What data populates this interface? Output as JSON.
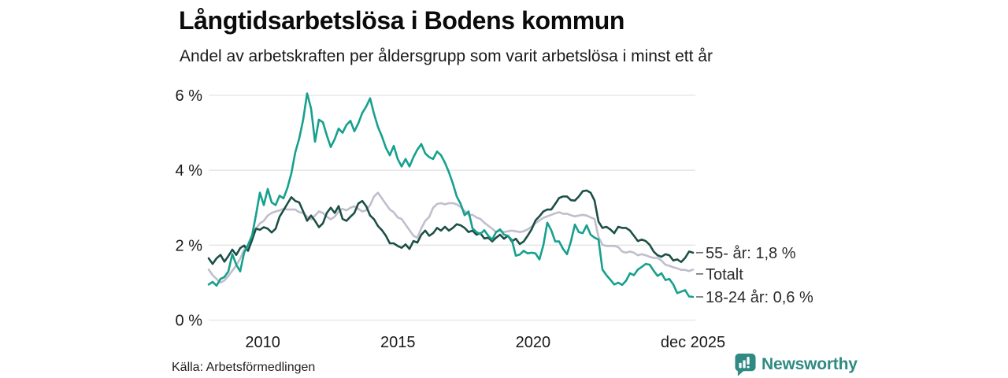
{
  "header": {
    "title": "Långtidsarbetslösa i Bodens kommun",
    "subtitle": "Andel av arbetskraften per åldersgrupp som varit arbetslösa i minst ett år"
  },
  "footer": {
    "source": "Källa: Arbetsförmedlingen",
    "brand": "Newsworthy",
    "brand_icon": "bar-chart-speech-bubble-icon"
  },
  "colors": {
    "brand": "#2e8a82",
    "grid": "#e4e4e4",
    "axis_text": "#1a1a1a",
    "label_text": "#2b2b2b",
    "label_dash": "#6b6b6b"
  },
  "chart_data": {
    "type": "line",
    "title": "Långtidsarbetslösa i Bodens kommun",
    "subtitle": "Andel av arbetskraften per åldersgrupp som varit arbetslösa i minst ett år",
    "unit": "% av arbetskraften",
    "grid": true,
    "x_axis": {
      "start_year": 2008.0,
      "end_year": 2025.92,
      "ticks": [
        {
          "year": 2010,
          "label": "2010"
        },
        {
          "year": 2015,
          "label": "2015"
        },
        {
          "year": 2020,
          "label": "2020"
        },
        {
          "year": 2025.92,
          "label": "dec 2025"
        }
      ]
    },
    "y_axis": {
      "max": 6,
      "ticks": [
        {
          "value": 0,
          "label": "0 %"
        },
        {
          "value": 2,
          "label": "2 %"
        },
        {
          "value": 4,
          "label": "4 %"
        },
        {
          "value": 6,
          "label": "6 %"
        }
      ]
    },
    "series": [
      {
        "name": "Totalt",
        "end_label": "Totalt",
        "color": "#c1becd",
        "values": [
          1.35,
          1.2,
          1.1,
          1.0,
          1.06,
          1.18,
          1.32,
          1.46,
          1.64,
          1.88,
          2.02,
          2.27,
          2.44,
          2.58,
          2.65,
          2.79,
          2.86,
          2.9,
          2.93,
          2.97,
          2.95,
          2.95,
          2.95,
          2.88,
          2.86,
          2.76,
          2.69,
          2.79,
          2.9,
          2.86,
          2.76,
          2.69,
          2.76,
          2.9,
          2.97,
          2.93,
          3.0,
          3.04,
          2.97,
          2.9,
          2.93,
          3.07,
          3.3,
          3.4,
          3.25,
          3.1,
          2.95,
          2.88,
          2.74,
          2.7,
          2.55,
          2.4,
          2.25,
          2.2,
          2.45,
          2.65,
          2.75,
          3.0,
          3.1,
          3.12,
          3.09,
          3.12,
          3.12,
          3.09,
          3.02,
          2.91,
          2.81,
          2.81,
          2.74,
          2.7,
          2.6,
          2.52,
          2.44,
          2.35,
          2.39,
          2.35,
          2.37,
          2.39,
          2.37,
          2.35,
          2.37,
          2.42,
          2.49,
          2.59,
          2.66,
          2.73,
          2.77,
          2.81,
          2.85,
          2.88,
          2.84,
          2.84,
          2.8,
          2.77,
          2.79,
          2.81,
          2.79,
          2.74,
          2.7,
          2.22,
          2.01,
          1.98,
          1.98,
          1.98,
          1.95,
          1.83,
          1.8,
          1.83,
          1.8,
          1.73,
          1.76,
          1.73,
          1.69,
          1.66,
          1.66,
          1.59,
          1.48,
          1.45,
          1.41,
          1.38,
          1.34,
          1.34,
          1.31,
          1.35
        ]
      },
      {
        "name": "55- år",
        "end_label": "55- år: 1,8 %",
        "color": "#1d4f47",
        "values": [
          1.65,
          1.5,
          1.65,
          1.74,
          1.56,
          1.71,
          1.88,
          1.74,
          1.92,
          1.99,
          1.85,
          2.13,
          2.44,
          2.41,
          2.48,
          2.44,
          2.34,
          2.44,
          2.76,
          2.93,
          3.11,
          3.28,
          3.18,
          3.14,
          2.9,
          2.65,
          2.79,
          2.65,
          2.48,
          2.58,
          2.86,
          3.0,
          2.86,
          3.04,
          2.7,
          2.65,
          2.76,
          2.86,
          3.11,
          3.18,
          3.04,
          2.79,
          2.69,
          2.51,
          2.4,
          2.25,
          2.05,
          2.05,
          1.98,
          1.93,
          2.02,
          1.9,
          2.11,
          2.07,
          2.28,
          2.39,
          2.25,
          2.32,
          2.46,
          2.39,
          2.49,
          2.39,
          2.46,
          2.56,
          2.53,
          2.46,
          2.35,
          2.39,
          2.28,
          2.32,
          2.18,
          2.2,
          2.1,
          2.2,
          2.28,
          2.17,
          2.25,
          2.1,
          2.17,
          2.03,
          2.1,
          2.25,
          2.42,
          2.66,
          2.77,
          2.9,
          2.95,
          2.95,
          3.1,
          3.26,
          3.3,
          3.3,
          3.2,
          3.19,
          3.3,
          3.44,
          3.46,
          3.4,
          3.19,
          2.63,
          2.46,
          2.49,
          2.42,
          2.32,
          2.49,
          2.46,
          2.46,
          2.39,
          2.25,
          2.11,
          2.15,
          2.11,
          2.01,
          1.83,
          1.73,
          1.69,
          1.76,
          1.73,
          1.59,
          1.62,
          1.55,
          1.66,
          1.83,
          1.8
        ]
      },
      {
        "name": "18-24 år",
        "end_label": "18-24 år: 0,6 %",
        "color": "#16a08d",
        "values": [
          0.95,
          1.02,
          0.92,
          1.1,
          1.15,
          1.3,
          1.76,
          1.48,
          1.3,
          1.8,
          2.0,
          2.25,
          2.8,
          3.4,
          3.07,
          3.5,
          3.14,
          3.07,
          3.32,
          3.25,
          3.53,
          3.92,
          4.48,
          4.85,
          5.35,
          6.05,
          5.65,
          4.76,
          5.35,
          5.28,
          4.93,
          4.62,
          4.83,
          5.11,
          5.0,
          5.21,
          5.32,
          5.04,
          5.25,
          5.53,
          5.7,
          5.92,
          5.5,
          5.15,
          4.9,
          4.6,
          4.4,
          4.65,
          4.3,
          4.1,
          4.3,
          4.1,
          4.35,
          4.55,
          4.7,
          4.45,
          4.35,
          4.3,
          4.5,
          4.4,
          4.2,
          3.95,
          3.65,
          3.3,
          3.1,
          2.8,
          2.9,
          2.45,
          2.35,
          2.3,
          2.4,
          2.25,
          2.15,
          2.35,
          2.42,
          2.28,
          2.25,
          2.14,
          1.72,
          1.75,
          1.85,
          1.78,
          1.8,
          1.78,
          1.62,
          2.0,
          2.6,
          2.4,
          2.1,
          2.1,
          1.9,
          1.76,
          2.1,
          2.55,
          2.35,
          2.32,
          2.53,
          2.28,
          2.2,
          2.15,
          1.35,
          1.2,
          1.08,
          0.95,
          1.0,
          0.94,
          1.05,
          1.25,
          1.2,
          1.35,
          1.42,
          1.5,
          1.48,
          1.32,
          1.18,
          1.25,
          1.07,
          1.1,
          0.95,
          0.72,
          0.76,
          0.8,
          0.63,
          0.62
        ]
      }
    ]
  }
}
